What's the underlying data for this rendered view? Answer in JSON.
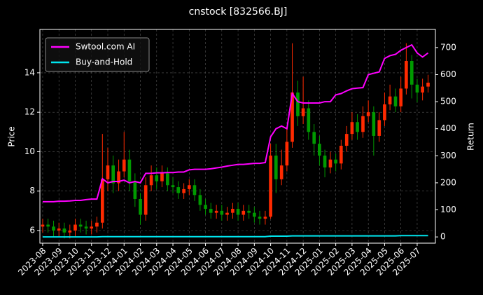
{
  "chart_data": {
    "type": "candlestick",
    "title": "cnstock [832566.BJ]",
    "ylabel": "Price",
    "y2label": "Return",
    "x": [
      0,
      0.33,
      0.67,
      1,
      1.33,
      1.67,
      2,
      2.33,
      2.67,
      3,
      3.33,
      3.67,
      4,
      4.33,
      4.67,
      5,
      5.33,
      5.67,
      6,
      6.33,
      6.67,
      7,
      7.33,
      7.67,
      8,
      8.33,
      8.67,
      9,
      9.33,
      9.67,
      10,
      10.33,
      10.67,
      11,
      11.33,
      11.67,
      12,
      12.33,
      12.67,
      13,
      13.33,
      13.67,
      14,
      14.33,
      14.67,
      15,
      15.33,
      15.67,
      16,
      16.33,
      16.67,
      17,
      17.33,
      17.67,
      18,
      18.33,
      18.67,
      19,
      19.33,
      19.67,
      20,
      20.33,
      20.67,
      21,
      21.33,
      21.67,
      22,
      22.33,
      22.67,
      23,
      23.33,
      23.67
    ],
    "open": [
      6.2,
      6.3,
      6.2,
      6.0,
      6.1,
      5.9,
      6.0,
      6.3,
      6.2,
      6.1,
      6.2,
      6.4,
      8.6,
      9.3,
      8.4,
      9.0,
      9.6,
      8.5,
      7.6,
      6.8,
      8.3,
      8.8,
      8.5,
      8.9,
      8.3,
      8.2,
      7.9,
      8.1,
      8.3,
      7.8,
      7.3,
      7.1,
      6.9,
      7.0,
      6.8,
      6.9,
      7.1,
      6.8,
      7.0,
      6.9,
      6.7,
      6.6,
      6.7,
      9.8,
      8.6,
      9.3,
      10.5,
      13.0,
      11.8,
      12.2,
      11.0,
      10.4,
      9.8,
      9.2,
      9.6,
      9.4,
      10.3,
      10.9,
      11.5,
      11.0,
      11.8,
      12.0,
      10.8,
      11.6,
      12.4,
      12.8,
      12.3,
      13.2,
      14.6,
      13.4,
      13.0,
      13.3
    ],
    "high": [
      6.6,
      6.6,
      6.5,
      6.4,
      6.4,
      6.3,
      6.6,
      6.6,
      6.5,
      6.5,
      6.7,
      10.9,
      10.2,
      9.8,
      9.6,
      11.0,
      10.1,
      8.9,
      7.9,
      8.7,
      9.3,
      9.2,
      9.3,
      9.2,
      8.7,
      8.5,
      8.4,
      8.6,
      8.6,
      8.1,
      7.6,
      7.4,
      7.3,
      7.3,
      7.2,
      7.4,
      7.4,
      7.3,
      7.3,
      7.2,
      7.0,
      7.0,
      10.4,
      10.4,
      10.1,
      11.2,
      15.5,
      13.6,
      13.8,
      12.6,
      11.4,
      10.8,
      10.1,
      10.0,
      9.9,
      10.6,
      11.3,
      12.0,
      11.9,
      12.3,
      12.6,
      12.3,
      12.0,
      13.0,
      13.4,
      13.2,
      13.8,
      15.5,
      14.9,
      13.7,
      13.7,
      13.9
    ],
    "low": [
      5.9,
      5.9,
      5.7,
      5.7,
      5.6,
      5.6,
      5.7,
      5.9,
      5.8,
      5.8,
      5.9,
      6.1,
      8.0,
      7.9,
      8.0,
      8.7,
      8.0,
      7.2,
      6.3,
      6.5,
      8.0,
      8.1,
      8.2,
      8.0,
      7.9,
      7.6,
      7.6,
      7.8,
      7.5,
      7.0,
      6.8,
      6.6,
      6.6,
      6.5,
      6.5,
      6.6,
      6.5,
      6.5,
      6.6,
      6.4,
      6.3,
      6.3,
      6.6,
      7.9,
      8.3,
      9.0,
      10.2,
      11.3,
      11.4,
      10.6,
      9.8,
      9.3,
      8.7,
      8.9,
      9.0,
      9.1,
      10.0,
      10.6,
      10.6,
      10.7,
      11.5,
      9.8,
      10.5,
      11.3,
      12.1,
      12.0,
      12.0,
      12.9,
      12.7,
      12.5,
      12.6,
      13.0
    ],
    "close": [
      6.3,
      6.2,
      6.0,
      6.1,
      5.9,
      6.0,
      6.3,
      6.2,
      6.1,
      6.2,
      6.4,
      8.6,
      9.3,
      8.4,
      9.0,
      9.6,
      8.5,
      7.6,
      6.8,
      8.3,
      8.8,
      8.5,
      8.9,
      8.3,
      8.2,
      7.9,
      8.1,
      8.3,
      7.8,
      7.3,
      7.1,
      6.9,
      7.0,
      6.8,
      6.9,
      7.1,
      6.8,
      7.0,
      6.9,
      6.7,
      6.6,
      6.7,
      9.8,
      8.6,
      9.3,
      10.5,
      13.0,
      11.8,
      12.2,
      11.0,
      10.4,
      9.8,
      9.2,
      9.6,
      9.4,
      10.3,
      10.9,
      11.5,
      11.0,
      11.8,
      12.0,
      10.8,
      11.6,
      12.4,
      12.8,
      12.3,
      13.2,
      14.6,
      13.4,
      13.0,
      13.3,
      13.5
    ],
    "up_color": "#ff2a00",
    "down_color": "#009a00",
    "series": [
      {
        "name": "Swtool.com AI",
        "color": "#ff00ff",
        "axis": "y2",
        "values": [
          130,
          130,
          130,
          132,
          132,
          133,
          135,
          135,
          138,
          140,
          140,
          215,
          200,
          205,
          205,
          210,
          200,
          205,
          200,
          235,
          235,
          237,
          237,
          238,
          238,
          240,
          240,
          248,
          250,
          250,
          250,
          252,
          255,
          258,
          262,
          265,
          268,
          268,
          270,
          272,
          272,
          275,
          370,
          400,
          410,
          400,
          530,
          500,
          495,
          495,
          495,
          495,
          500,
          500,
          525,
          530,
          540,
          548,
          550,
          552,
          600,
          605,
          610,
          660,
          670,
          675,
          690,
          700,
          710,
          680,
          665,
          680
        ]
      },
      {
        "name": "Buy-and-Hold",
        "color": "#00e5ee",
        "axis": "y2",
        "values": [
          0,
          0,
          0,
          0,
          0,
          0,
          0,
          0,
          0,
          0,
          0,
          1,
          1,
          1,
          1,
          1,
          1,
          1,
          1,
          1,
          1,
          1,
          1,
          1,
          1,
          1,
          1,
          1,
          1,
          1,
          1,
          1,
          1,
          1,
          1,
          1,
          1,
          1,
          1,
          1,
          1,
          1,
          3,
          3,
          3,
          3,
          4,
          4,
          4,
          4,
          4,
          4,
          4,
          4,
          4,
          4,
          4,
          4,
          4,
          4,
          4,
          4,
          4,
          4,
          4,
          4,
          5,
          5,
          5,
          5,
          5,
          5
        ]
      }
    ],
    "xlim": [
      -0.17,
      24.12
    ],
    "xticks": [
      {
        "value": 0,
        "label": "2023-08"
      },
      {
        "value": 1,
        "label": "2023-09"
      },
      {
        "value": 2,
        "label": "2023-10"
      },
      {
        "value": 3,
        "label": "2023-11"
      },
      {
        "value": 4,
        "label": "2023-12"
      },
      {
        "value": 5,
        "label": "2024-01"
      },
      {
        "value": 6,
        "label": "2024-02"
      },
      {
        "value": 7,
        "label": "2024-03"
      },
      {
        "value": 8,
        "label": "2024-04"
      },
      {
        "value": 9,
        "label": "2024-05"
      },
      {
        "value": 10,
        "label": "2024-06"
      },
      {
        "value": 11,
        "label": "2024-07"
      },
      {
        "value": 12,
        "label": "2024-08"
      },
      {
        "value": 13,
        "label": "2024-09"
      },
      {
        "value": 14,
        "label": "2024-10"
      },
      {
        "value": 15,
        "label": "2024-11"
      },
      {
        "value": 16,
        "label": "2024-12"
      },
      {
        "value": 17,
        "label": "2025-01"
      },
      {
        "value": 18,
        "label": "2025-02"
      },
      {
        "value": 19,
        "label": "2025-03"
      },
      {
        "value": 20,
        "label": "2025-04"
      },
      {
        "value": 21,
        "label": "2025-05"
      },
      {
        "value": 22,
        "label": "2025-06"
      },
      {
        "value": 23,
        "label": "2025-07"
      }
    ],
    "ylim": [
      5.36,
      16.2
    ],
    "yticks": [
      6,
      8,
      10,
      12,
      14
    ],
    "y2lim": [
      -23,
      767
    ],
    "y2ticks": [
      0,
      100,
      200,
      300,
      400,
      500,
      600,
      700
    ],
    "grid": true,
    "legend": "upper left"
  }
}
